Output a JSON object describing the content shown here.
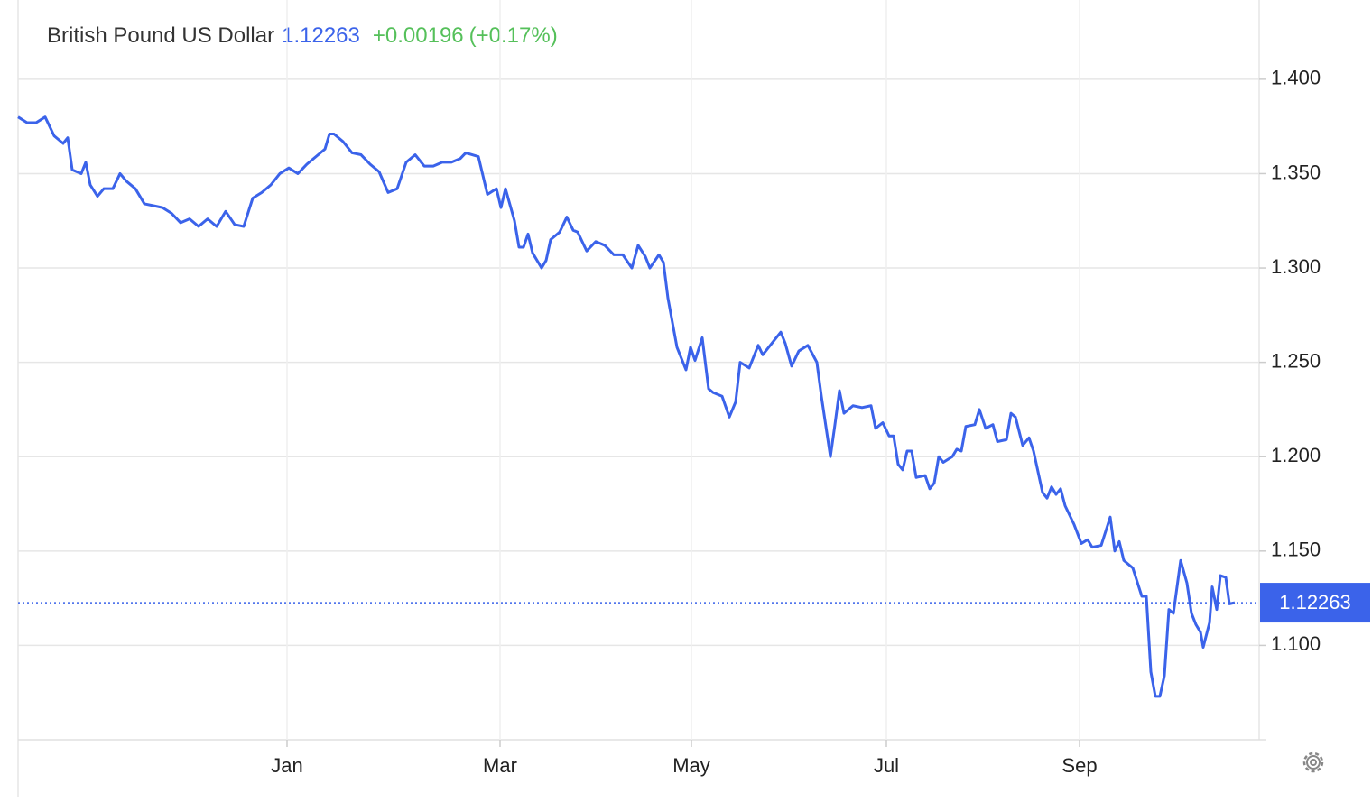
{
  "chart_data": {
    "type": "line",
    "title": "British Pound US Dollar",
    "price": 1.12263,
    "change": "+0.00196",
    "change_pct": "(+0.17%)",
    "x": [
      0,
      2.5,
      5,
      7.5,
      10,
      12.5,
      13.75,
      15,
      17.5,
      18.75,
      20,
      22,
      23.75,
      26.25,
      28.25,
      30,
      32.5,
      35,
      37.5,
      40,
      42.5,
      45,
      47.5,
      50,
      52.5,
      55,
      57.5,
      60,
      62.5,
      65,
      67.5,
      70,
      72.5,
      75,
      77.5,
      80,
      82.5,
      85,
      86.25,
      87.5,
      90,
      92.5,
      95,
      97.5,
      100,
      102.5,
      105,
      107.5,
      110,
      112.5,
      115,
      117.5,
      120,
      122.5,
      124,
      127.5,
      130,
      132.5,
      133.75,
      135,
      137.5,
      138.75,
      140,
      141.25,
      142.5,
      145,
      146.25,
      147.5,
      150,
      152,
      153.75,
      155,
      157.5,
      160,
      162.5,
      165,
      167.5,
      170,
      171.75,
      173.75,
      175,
      177.5,
      178.75,
      180,
      182.5,
      185,
      186.25,
      187.5,
      189.5,
      191.25,
      192.5,
      195,
      197,
      198.75,
      200,
      202.5,
      205,
      206.25,
      208.75,
      211.25,
      212.5,
      214.25,
      216.25,
      218.75,
      221.25,
      222.5,
      225,
      226.25,
      227.5,
      228.75,
      231.25,
      233.75,
      236.25,
      237.5,
      239.5,
      241.25,
      242.5,
      243.75,
      245,
      246.25,
      247.5,
      248.75,
      251.25,
      252.5,
      253.75,
      255,
      256.25,
      258.75,
      260,
      261.25,
      262.5,
      265,
      266.25,
      268,
      270,
      271.25,
      273.75,
      275,
      276.25,
      278.25,
      280,
      281.25,
      283.75,
      285,
      286.25,
      287.5,
      288.75,
      290,
      292.5,
      294.5,
      296.25,
      297.5,
      300,
      302.5,
      303.75,
      305,
      306.25,
      308.75,
      311.25,
      312.5,
      313.75,
      315,
      316.25,
      317.5,
      318.75,
      320,
      322,
      323.75,
      325,
      326.25,
      327.5,
      328.25,
      330,
      330.75,
      332,
      333,
      334.5,
      335.5,
      337
    ],
    "series": [
      {
        "name": "British Pound US Dollar",
        "color": "#3b63ea",
        "values": [
          1.38,
          1.377,
          1.377,
          1.38,
          1.37,
          1.366,
          1.369,
          1.352,
          1.35,
          1.356,
          1.344,
          1.338,
          1.342,
          1.342,
          1.35,
          1.346,
          1.342,
          1.334,
          1.333,
          1.332,
          1.329,
          1.324,
          1.326,
          1.322,
          1.326,
          1.322,
          1.33,
          1.323,
          1.322,
          1.337,
          1.34,
          1.344,
          1.35,
          1.353,
          1.35,
          1.355,
          1.359,
          1.363,
          1.371,
          1.371,
          1.367,
          1.361,
          1.36,
          1.355,
          1.351,
          1.34,
          1.342,
          1.356,
          1.36,
          1.354,
          1.354,
          1.356,
          1.356,
          1.358,
          1.361,
          1.359,
          1.339,
          1.342,
          1.332,
          1.342,
          1.325,
          1.311,
          1.311,
          1.318,
          1.308,
          1.3,
          1.304,
          1.315,
          1.319,
          1.327,
          1.32,
          1.319,
          1.309,
          1.314,
          1.312,
          1.307,
          1.307,
          1.3,
          1.312,
          1.306,
          1.3,
          1.307,
          1.303,
          1.284,
          1.258,
          1.246,
          1.258,
          1.251,
          1.263,
          1.236,
          1.234,
          1.232,
          1.221,
          1.229,
          1.25,
          1.247,
          1.259,
          1.254,
          1.26,
          1.266,
          1.26,
          1.248,
          1.256,
          1.259,
          1.25,
          1.232,
          1.2,
          1.217,
          1.235,
          1.223,
          1.227,
          1.226,
          1.227,
          1.215,
          1.218,
          1.211,
          1.211,
          1.196,
          1.193,
          1.203,
          1.203,
          1.189,
          1.19,
          1.183,
          1.186,
          1.2,
          1.197,
          1.2,
          1.204,
          1.203,
          1.216,
          1.217,
          1.225,
          1.215,
          1.217,
          1.208,
          1.209,
          1.223,
          1.221,
          1.206,
          1.21,
          1.203,
          1.181,
          1.178,
          1.184,
          1.18,
          1.183,
          1.174,
          1.164,
          1.154,
          1.156,
          1.152,
          1.153,
          1.168,
          1.15,
          1.155,
          1.145,
          1.141,
          1.126,
          1.126,
          1.086,
          1.073,
          1.073,
          1.084,
          1.119,
          1.117,
          1.145,
          1.133,
          1.117,
          1.111,
          1.107,
          1.099,
          1.112,
          1.131,
          1.119,
          1.137,
          1.136,
          1.122,
          1.12263
        ]
      }
    ],
    "xlim": [
      0,
      343.75
    ],
    "xticks": [
      {
        "value": 74.5,
        "label": "Jan"
      },
      {
        "value": 133.5,
        "label": "Mar"
      },
      {
        "value": 186.5,
        "label": "May"
      },
      {
        "value": 240.5,
        "label": "Jul"
      },
      {
        "value": 294,
        "label": "Sep"
      }
    ],
    "ylim": [
      1.05,
      1.442
    ],
    "yticks": [
      {
        "value": 1.1,
        "label": "1.100"
      },
      {
        "value": 1.15,
        "label": "1.150"
      },
      {
        "value": 1.2,
        "label": "1.200"
      },
      {
        "value": 1.25,
        "label": "1.250"
      },
      {
        "value": 1.3,
        "label": "1.300"
      },
      {
        "value": 1.35,
        "label": "1.350"
      },
      {
        "value": 1.4,
        "label": "1.400"
      }
    ],
    "grid": true
  }
}
